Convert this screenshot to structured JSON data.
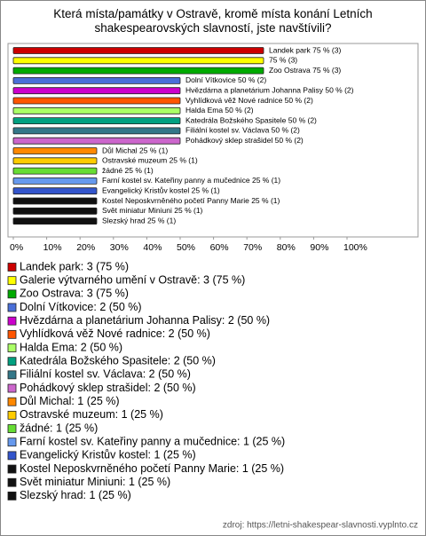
{
  "chart_data": {
    "type": "bar",
    "title": "Která místa/památky v Ostravě, kromě místa konání Letních shakespearovských slavností, jste navštívili?",
    "categories": [
      "Landek park",
      "Galerie výtvarného umění v Ostravě",
      "Zoo Ostrava",
      "Dolní Vítkovice",
      "Hvězdárna a planetárium Johanna Palisy",
      "Vyhlídková věž Nové radnice",
      "Halda Ema",
      "Katedrála Božského Spasitele",
      "Filiální kostel sv. Václava",
      "Pohádkový sklep strašidel",
      "Důl Michal",
      "Ostravské muzeum",
      "žádné",
      "Farní kostel sv. Kateřiny panny a mučednice",
      "Evangelický Kristův kostel",
      "Kostel Neposkvrněného početí Panny Marie",
      "Svět miniatur Miniuni",
      "Slezský hrad"
    ],
    "values": [
      75,
      75,
      75,
      50,
      50,
      50,
      50,
      50,
      50,
      50,
      25,
      25,
      25,
      25,
      25,
      25,
      25,
      25
    ],
    "value_labels": [
      "Landek park 75 % (3)",
      "75 % (3)",
      "Zoo Ostrava 75 % (3)",
      "Dolní Vítkovice 50 % (2)",
      "Hvězdárna a planetárium Johanna Palisy 50 % (2)",
      "Vyhlídková věž Nové radnice 50 % (2)",
      "Halda Ema 50 % (2)",
      "Katedrála Božského Spasitele 50 % (2)",
      "Filiální kostel sv. Václava 50 % (2)",
      "Pohádkový sklep strašidel 50 % (2)",
      "Důl Michal 25 % (1)",
      "Ostravské muzeum 25 % (1)",
      "žádné 25 % (1)",
      "Farní kostel sv. Kateřiny panny a mučednice 25 % (1)",
      "Evangelický Kristův kostel 25 % (1)",
      "Kostel Neposkvrněného početí Panny Marie 25 % (1)",
      "Svět miniatur Miniuni 25 % (1)",
      "Slezský hrad 25 % (1)"
    ],
    "legend_labels": [
      "Landek park: 3 (75 %)",
      "Galerie výtvarného umění v Ostravě: 3 (75 %)",
      "Zoo Ostrava: 3 (75 %)",
      "Dolní Vítkovice: 2 (50 %)",
      "Hvězdárna a planetárium Johanna Palisy: 2 (50 %)",
      "Vyhlídková věž Nové radnice: 2 (50 %)",
      "Halda Ema: 2 (50 %)",
      "Katedrála Božského Spasitele: 2 (50 %)",
      "Filiální kostel sv. Václava: 2 (50 %)",
      "Pohádkový sklep strašidel: 2 (50 %)",
      "Důl Michal: 1 (25 %)",
      "Ostravské muzeum: 1 (25 %)",
      "žádné: 1 (25 %)",
      "Farní kostel sv. Kateřiny panny a mučednice: 1 (25 %)",
      "Evangelický Kristův kostel: 1 (25 %)",
      "Kostel Neposkvrněného početí Panny Marie: 1 (25 %)",
      "Svět miniatur Miniuni: 1 (25 %)",
      "Slezský hrad: 1 (25 %)"
    ],
    "colors": [
      "#cc0000",
      "#ffff00",
      "#00aa00",
      "#4a6fd8",
      "#cc00cc",
      "#ff5500",
      "#aaff66",
      "#00a080",
      "#337788",
      "#cc66cc",
      "#ff8800",
      "#ffcc00",
      "#66dd33",
      "#6699ee",
      "#3355cc",
      "#111111",
      "#111111",
      "#111111"
    ],
    "xlim": [
      0,
      100
    ],
    "xticks": [
      {
        "value": 0,
        "label": "0%"
      },
      {
        "value": 10,
        "label": "10%"
      },
      {
        "value": 20,
        "label": "20%"
      },
      {
        "value": 30,
        "label": "30%"
      },
      {
        "value": 40,
        "label": "40%"
      },
      {
        "value": 50,
        "label": "50%"
      },
      {
        "value": 60,
        "label": "60%"
      },
      {
        "value": 70,
        "label": "70%"
      },
      {
        "value": 80,
        "label": "80%"
      },
      {
        "value": 90,
        "label": "90%"
      },
      {
        "value": 100,
        "label": "100%"
      }
    ],
    "source": "zdroj: https://letni-shakespear-slavnosti.vyplnto.cz"
  }
}
